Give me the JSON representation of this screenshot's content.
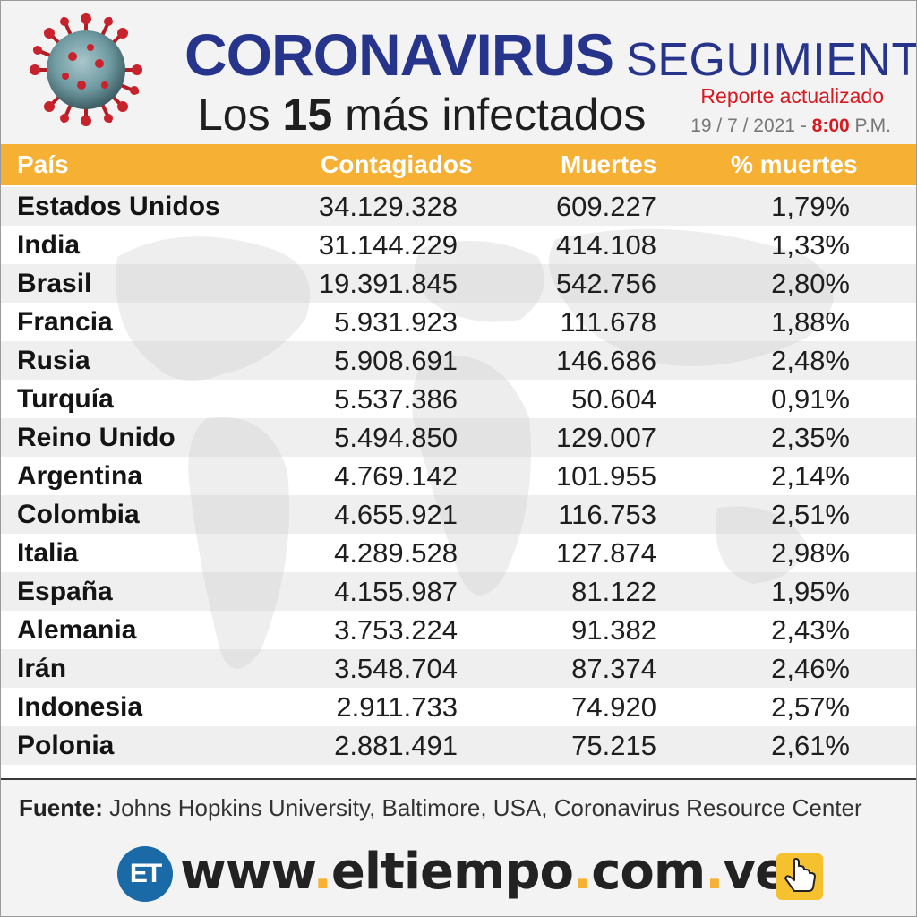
{
  "header": {
    "title_main": "CORONAVIRUS",
    "title_sub": "SEGUIMIENTO",
    "subtitle_prefix": "Los",
    "subtitle_number": "15",
    "subtitle_suffix": "más infectados",
    "report_label": "Reporte actualizado",
    "date": "19 / 7 / 2021 -",
    "time": "8:00",
    "time_suffix": "P.M."
  },
  "table": {
    "headers": [
      "País",
      "Contagiados",
      "Muertes",
      "% muertes"
    ],
    "rows": [
      [
        "Estados Unidos",
        "34.129.328",
        "609.227",
        "1,79%"
      ],
      [
        "India",
        "31.144.229",
        "414.108",
        "1,33%"
      ],
      [
        "Brasil",
        "19.391.845",
        "542.756",
        "2,80%"
      ],
      [
        "Francia",
        "5.931.923",
        "111.678",
        "1,88%"
      ],
      [
        "Rusia",
        "5.908.691",
        "146.686",
        "2,48%"
      ],
      [
        "Turquía",
        "5.537.386",
        "50.604",
        "0,91%"
      ],
      [
        "Reino Unido",
        "5.494.850",
        "129.007",
        "2,35%"
      ],
      [
        "Argentina",
        "4.769.142",
        "101.955",
        "2,14%"
      ],
      [
        "Colombia",
        "4.655.921",
        "116.753",
        "2,51%"
      ],
      [
        "Italia",
        "4.289.528",
        "127.874",
        "2,98%"
      ],
      [
        "España",
        "4.155.987",
        "81.122",
        "1,95%"
      ],
      [
        "Alemania",
        "3.753.224",
        "91.382",
        "2,43%"
      ],
      [
        "Irán",
        "3.548.704",
        "87.374",
        "2,46%"
      ],
      [
        "Indonesia",
        "2.911.733",
        "74.920",
        "2,57%"
      ],
      [
        "Polonia",
        "2.881.491",
        "75.215",
        "2,61%"
      ]
    ]
  },
  "footer": {
    "source_label": "Fuente:",
    "source_text": "Johns Hopkins University, Baltimore, USA, Coronavirus Resource Center",
    "logo_text": "ET",
    "url_parts": [
      "www",
      ".",
      "eltiempo",
      ".",
      "com",
      ".",
      "ve"
    ]
  },
  "colors": {
    "title_blue": "#27348b",
    "header_orange": "#f6b033",
    "accent_red": "#d71920",
    "logo_blue": "#1a6aa8"
  },
  "icons": [
    "coronavirus-illustration",
    "hand-pointer-icon"
  ]
}
